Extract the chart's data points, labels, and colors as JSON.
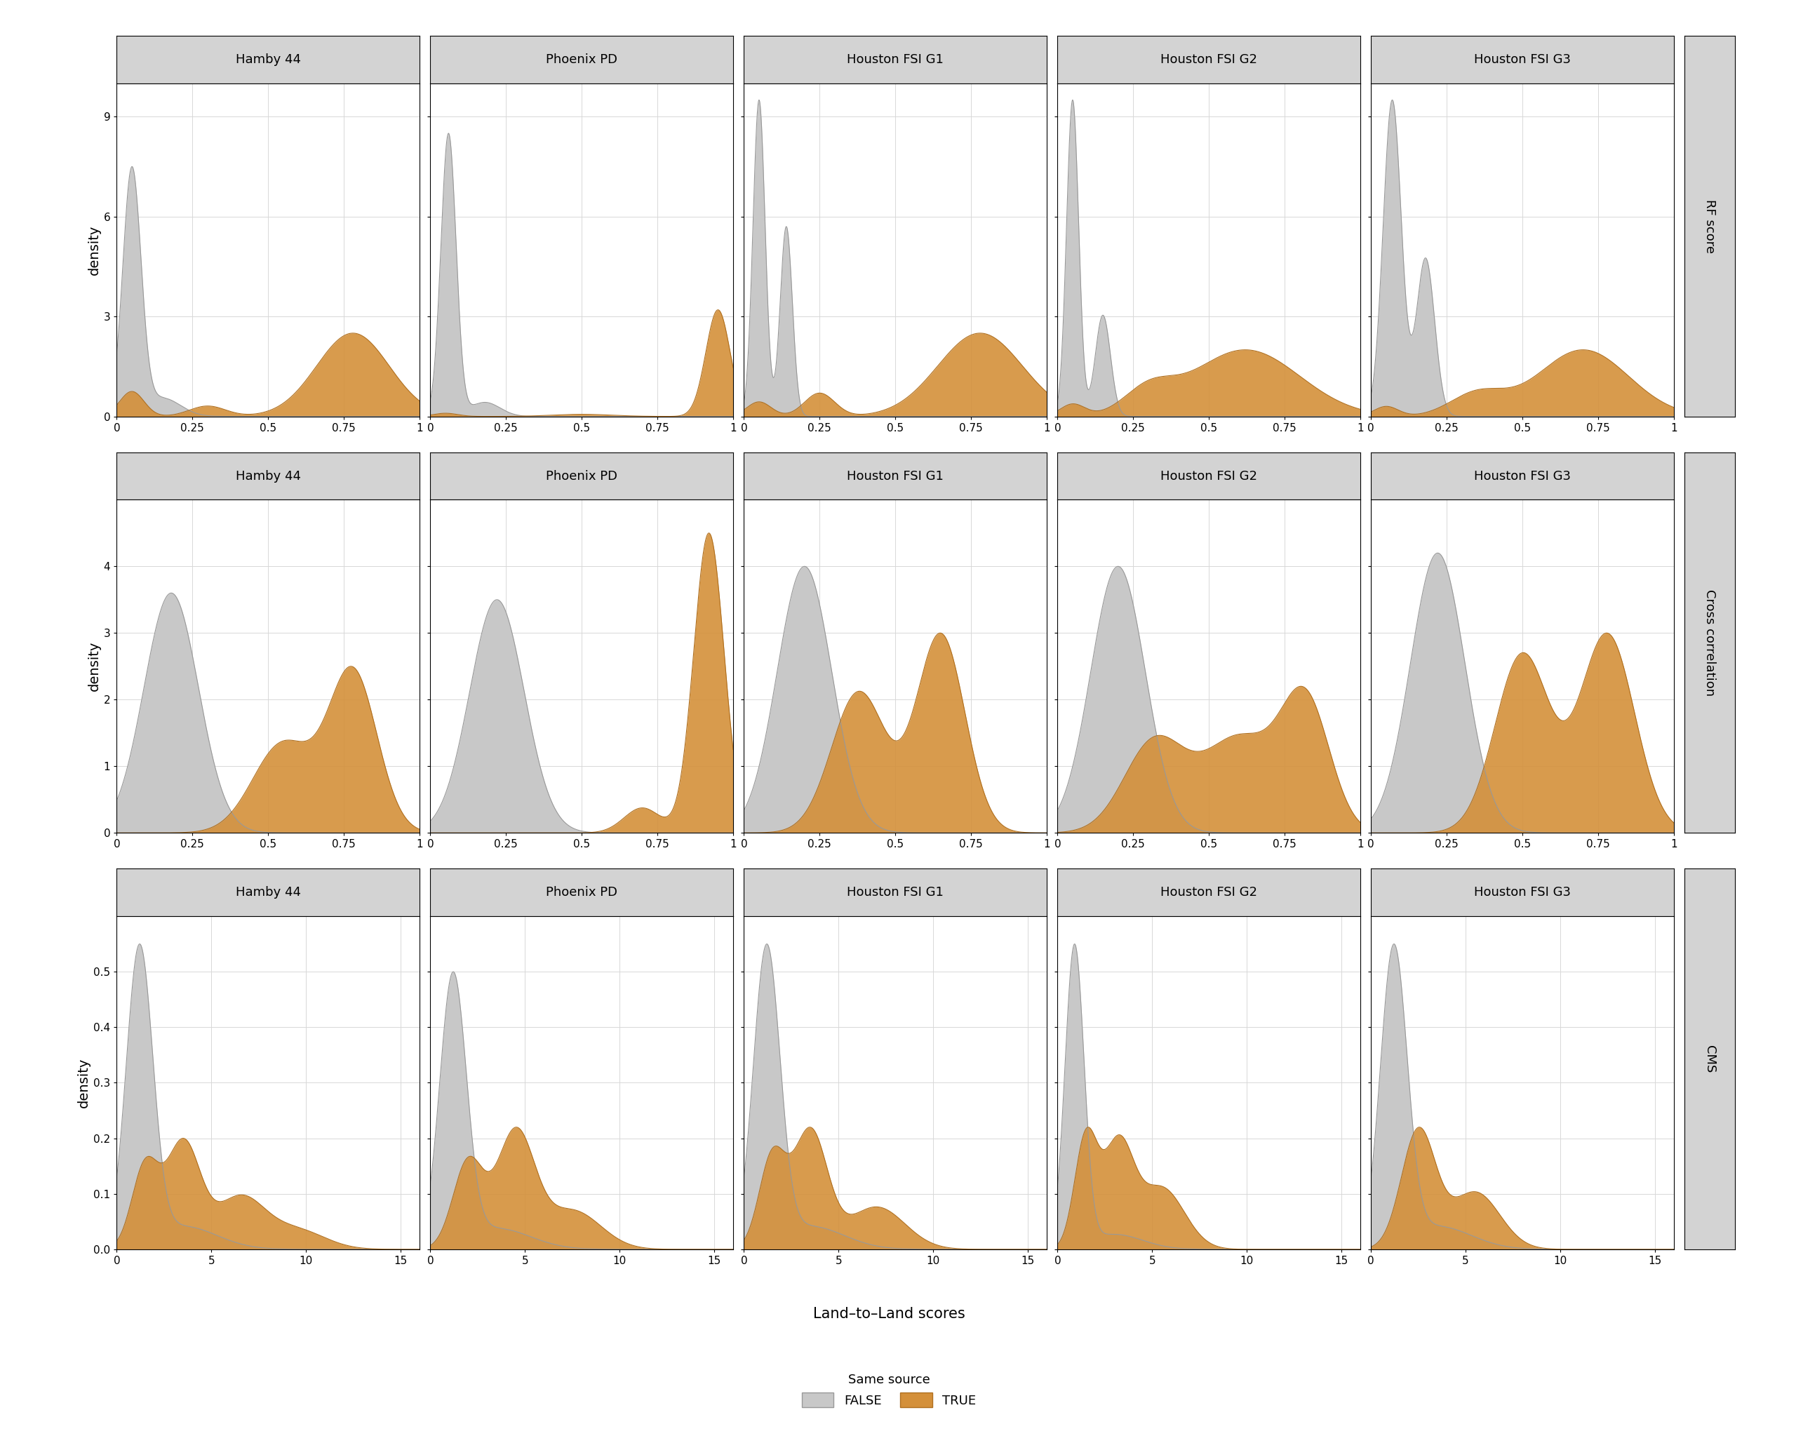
{
  "col_titles": [
    "Hamby 44",
    "Phoenix PD",
    "Houston FSI G1",
    "Houston FSI G2",
    "Houston FSI G3"
  ],
  "row_labels": [
    "RF score",
    "Cross correlation",
    "CMS"
  ],
  "gray_fill": "#c8c8c8",
  "gray_edge": "#999999",
  "orange_fill": "#d4903a",
  "orange_edge": "#b07020",
  "background_color": "#ffffff",
  "panel_bg": "#ffffff",
  "strip_bg": "#d3d3d3",
  "grid_color": "#d8d8d8",
  "xlabel": "Land–to–Land scores",
  "ylabel": "density",
  "legend_title": "Same source",
  "legend_false": "FALSE",
  "legend_true": "TRUE",
  "axis_fontsize": 11,
  "label_fontsize": 14,
  "strip_fontsize": 13,
  "legend_fontsize": 13,
  "rf_yticks": [
    0,
    3,
    6,
    9
  ],
  "rf_ylim": [
    0,
    10
  ],
  "cc_yticks": [
    0,
    1,
    2,
    3,
    4
  ],
  "cc_ylim": [
    0,
    5
  ],
  "cms_yticks": [
    0.0,
    0.1,
    0.2,
    0.3,
    0.4,
    0.5
  ],
  "cms_ylim": [
    0,
    0.6
  ],
  "rf_xticks": [
    0,
    0.25,
    0.5,
    0.75,
    1
  ],
  "rf_xticklabels": [
    "0",
    "0.25",
    "0.5",
    "0.75",
    "1"
  ],
  "cc_xticks": [
    0,
    0.25,
    0.5,
    0.75,
    1
  ],
  "cc_xticklabels": [
    "0",
    "0.25",
    "0.5",
    "0.75",
    "1"
  ],
  "cms_xticks": [
    0,
    5,
    10,
    15
  ],
  "cms_xticklabels": [
    "0",
    "5",
    "10",
    "15"
  ]
}
